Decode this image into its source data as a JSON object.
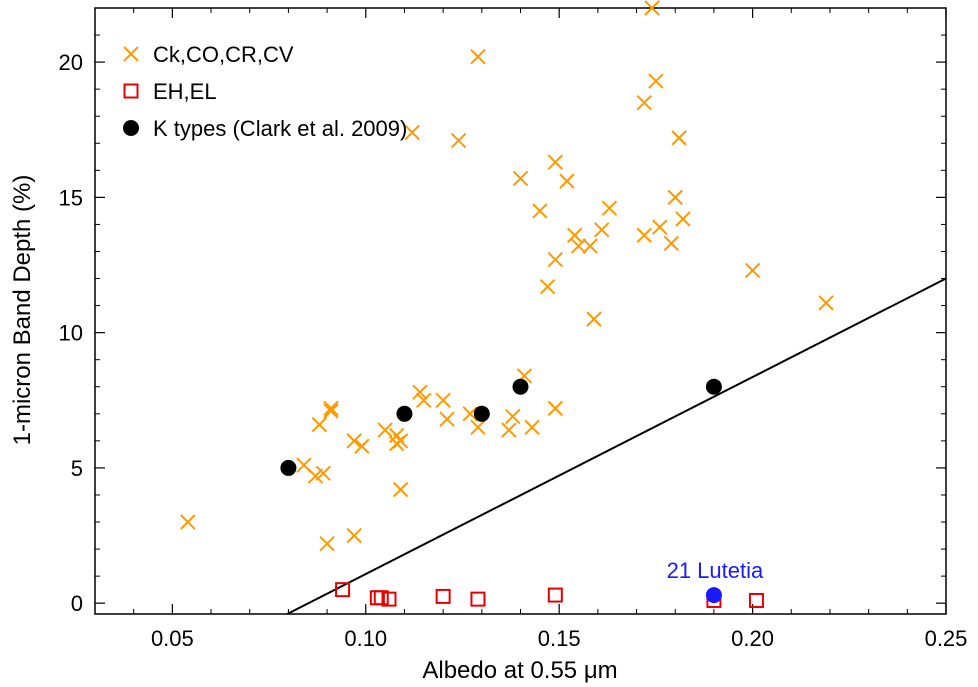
{
  "chart_data": {
    "type": "scatter",
    "xlabel": "Albedo at 0.55 μm",
    "ylabel": "1-micron Band Depth (%)",
    "xlim": [
      0.03,
      0.25
    ],
    "ylim": [
      -0.4,
      22.0
    ],
    "xticks": [
      "0.05",
      "0.10",
      "0.15",
      "0.20",
      "0.25"
    ],
    "xtick_values": [
      0.05,
      0.1,
      0.15,
      0.2,
      0.25
    ],
    "yticks": [
      "0",
      "5",
      "10",
      "15",
      "20"
    ],
    "ytick_values": [
      0,
      5,
      10,
      15,
      20
    ],
    "legend_position": "top-left",
    "series": [
      {
        "name": "Ck,CO,CR,CV",
        "marker": "x",
        "color": "#ff9900",
        "points": [
          [
            0.054,
            3.0
          ],
          [
            0.084,
            5.1
          ],
          [
            0.087,
            4.7
          ],
          [
            0.088,
            6.6
          ],
          [
            0.089,
            4.8
          ],
          [
            0.09,
            2.2
          ],
          [
            0.091,
            7.1
          ],
          [
            0.091,
            7.2
          ],
          [
            0.097,
            6.0
          ],
          [
            0.097,
            2.5
          ],
          [
            0.099,
            5.8
          ],
          [
            0.105,
            6.4
          ],
          [
            0.108,
            5.9
          ],
          [
            0.108,
            6.2
          ],
          [
            0.109,
            6.0
          ],
          [
            0.109,
            4.2
          ],
          [
            0.112,
            17.4
          ],
          [
            0.114,
            7.8
          ],
          [
            0.115,
            7.5
          ],
          [
            0.12,
            7.5
          ],
          [
            0.121,
            6.8
          ],
          [
            0.124,
            17.1
          ],
          [
            0.127,
            7.0
          ],
          [
            0.129,
            20.2
          ],
          [
            0.129,
            6.5
          ],
          [
            0.137,
            6.4
          ],
          [
            0.138,
            6.9
          ],
          [
            0.14,
            15.7
          ],
          [
            0.141,
            8.4
          ],
          [
            0.143,
            6.5
          ],
          [
            0.145,
            14.5
          ],
          [
            0.147,
            11.7
          ],
          [
            0.149,
            12.7
          ],
          [
            0.149,
            16.3
          ],
          [
            0.149,
            7.2
          ],
          [
            0.152,
            15.6
          ],
          [
            0.154,
            13.6
          ],
          [
            0.155,
            13.2
          ],
          [
            0.158,
            13.2
          ],
          [
            0.159,
            10.5
          ],
          [
            0.161,
            13.8
          ],
          [
            0.163,
            14.6
          ],
          [
            0.172,
            18.5
          ],
          [
            0.172,
            13.6
          ],
          [
            0.174,
            22.0
          ],
          [
            0.175,
            19.3
          ],
          [
            0.176,
            13.9
          ],
          [
            0.179,
            13.3
          ],
          [
            0.18,
            15.0
          ],
          [
            0.181,
            17.2
          ],
          [
            0.182,
            14.2
          ],
          [
            0.2,
            12.3
          ],
          [
            0.219,
            11.1
          ]
        ]
      },
      {
        "name": "EH,EL",
        "marker": "square",
        "color": "#e60000",
        "points": [
          [
            0.094,
            0.5
          ],
          [
            0.103,
            0.2
          ],
          [
            0.104,
            0.2
          ],
          [
            0.106,
            0.15
          ],
          [
            0.12,
            0.25
          ],
          [
            0.129,
            0.15
          ],
          [
            0.149,
            0.3
          ],
          [
            0.19,
            0.1
          ],
          [
            0.201,
            0.1
          ]
        ]
      },
      {
        "name": "K types (Clark et al. 2009)",
        "marker": "circle",
        "color": "#000000",
        "points": [
          [
            0.08,
            5.0
          ],
          [
            0.11,
            7.0
          ],
          [
            0.13,
            7.0
          ],
          [
            0.14,
            8.0
          ],
          [
            0.19,
            8.0
          ]
        ]
      }
    ],
    "highlight": {
      "label": "21 Lutetia",
      "color": "#1a1aff",
      "point": [
        0.19,
        0.3
      ]
    },
    "trend_line": {
      "color": "#000000",
      "points": [
        [
          0.0797,
          -0.4
        ],
        [
          0.25,
          12.0
        ]
      ]
    }
  }
}
